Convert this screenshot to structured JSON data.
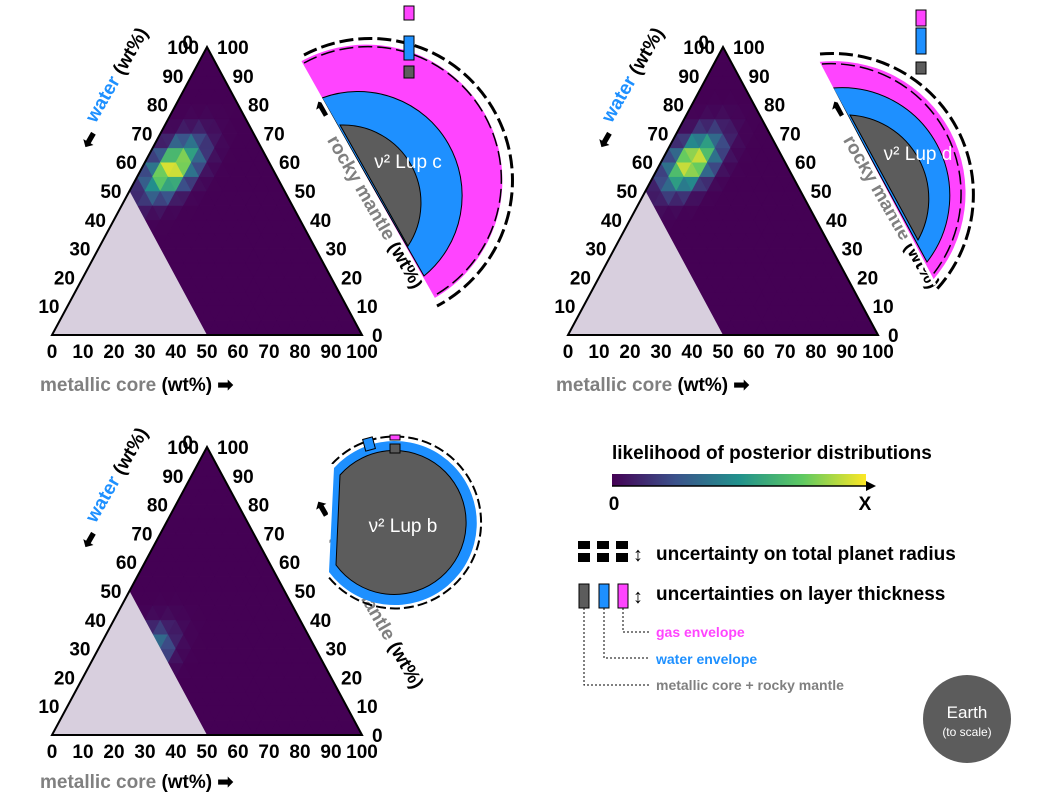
{
  "panels": [
    {
      "planet_label": "ν² Lup c",
      "axes": {
        "water": {
          "name": "water",
          "unit": "(wt%)",
          "ticks": [
            "10",
            "20",
            "30",
            "40",
            "50",
            "60",
            "70",
            "80",
            "90",
            "100"
          ]
        },
        "rocky_mantle": {
          "name": "rocky mantle",
          "unit": "(wt%)",
          "ticks": [
            "100",
            "90",
            "80",
            "70",
            "60",
            "50",
            "40",
            "30",
            "20",
            "10",
            "0"
          ]
        },
        "metallic_core": {
          "name": "metallic core",
          "unit": "(wt%)",
          "ticks": [
            "0",
            "10",
            "20",
            "30",
            "40",
            "50",
            "60",
            "70",
            "80",
            "90",
            "100"
          ]
        },
        "apex_label": "0"
      },
      "likelihood_peak": {
        "metallic_core": 10,
        "water": 58
      },
      "layers": [
        "metallic core + rocky mantle",
        "water envelope",
        "gas envelope"
      ]
    },
    {
      "planet_label": "ν² Lup d",
      "axes": {
        "water": {
          "name": "water",
          "unit": "(wt%)",
          "ticks": [
            "10",
            "20",
            "30",
            "40",
            "50",
            "60",
            "70",
            "80",
            "90",
            "100"
          ]
        },
        "rocky_mantle": {
          "name": "rocky mantle",
          "unit": "(wt%)",
          "ticks": [
            "100",
            "90",
            "80",
            "70",
            "60",
            "50",
            "40",
            "30",
            "20",
            "10",
            "0"
          ]
        },
        "metallic_core": {
          "name": "metallic core",
          "unit": "(wt%)",
          "ticks": [
            "0",
            "10",
            "20",
            "30",
            "40",
            "50",
            "60",
            "70",
            "80",
            "90",
            "100"
          ]
        },
        "apex_label": "0"
      },
      "likelihood_peak": {
        "metallic_core": 10,
        "water": 60
      },
      "layers": [
        "metallic core + rocky mantle",
        "water envelope",
        "gas envelope"
      ]
    },
    {
      "planet_label": "ν² Lup b",
      "axes": {
        "water": {
          "name": "water",
          "unit": "(wt%)",
          "ticks": [
            "10",
            "20",
            "30",
            "40",
            "50",
            "60",
            "70",
            "80",
            "90",
            "100"
          ]
        },
        "rocky_mantle": {
          "name": "rocky mantle",
          "unit": "(wt%)",
          "ticks": [
            "100",
            "90",
            "80",
            "70",
            "60",
            "50",
            "40",
            "30",
            "20",
            "10",
            "0"
          ]
        },
        "metallic_core": {
          "name": "metallic core",
          "unit": "(wt%)",
          "ticks": [
            "0",
            "10",
            "20",
            "30",
            "40",
            "50",
            "60",
            "70",
            "80",
            "90",
            "100"
          ]
        },
        "apex_label": "0"
      },
      "likelihood_peak": {
        "metallic_core": 15,
        "water": 25
      },
      "layers": [
        "metallic core + rocky mantle",
        "water envelope"
      ]
    }
  ],
  "legend": {
    "title": "likelihood of posterior distributions",
    "min_label": "0",
    "max_label": "X",
    "total_radius_label": "uncertainty on total planet radius",
    "layer_thickness_label": "uncertainties on layer thickness",
    "gas_label": "gas envelope",
    "water_label": "water envelope",
    "core_label": "metallic core + rocky mantle"
  },
  "earth": {
    "name": "Earth",
    "note": "(to scale)"
  },
  "colors": {
    "gas": "#ff44ff",
    "water": "#1e90ff",
    "core": "#5c5c5c",
    "excluded": "#d8cfde",
    "metallic_text": "#808080",
    "mantle_text": "#808080",
    "water_text": "#1e90ff",
    "viridis_low": "#440154",
    "viridis_high": "#fde725"
  }
}
